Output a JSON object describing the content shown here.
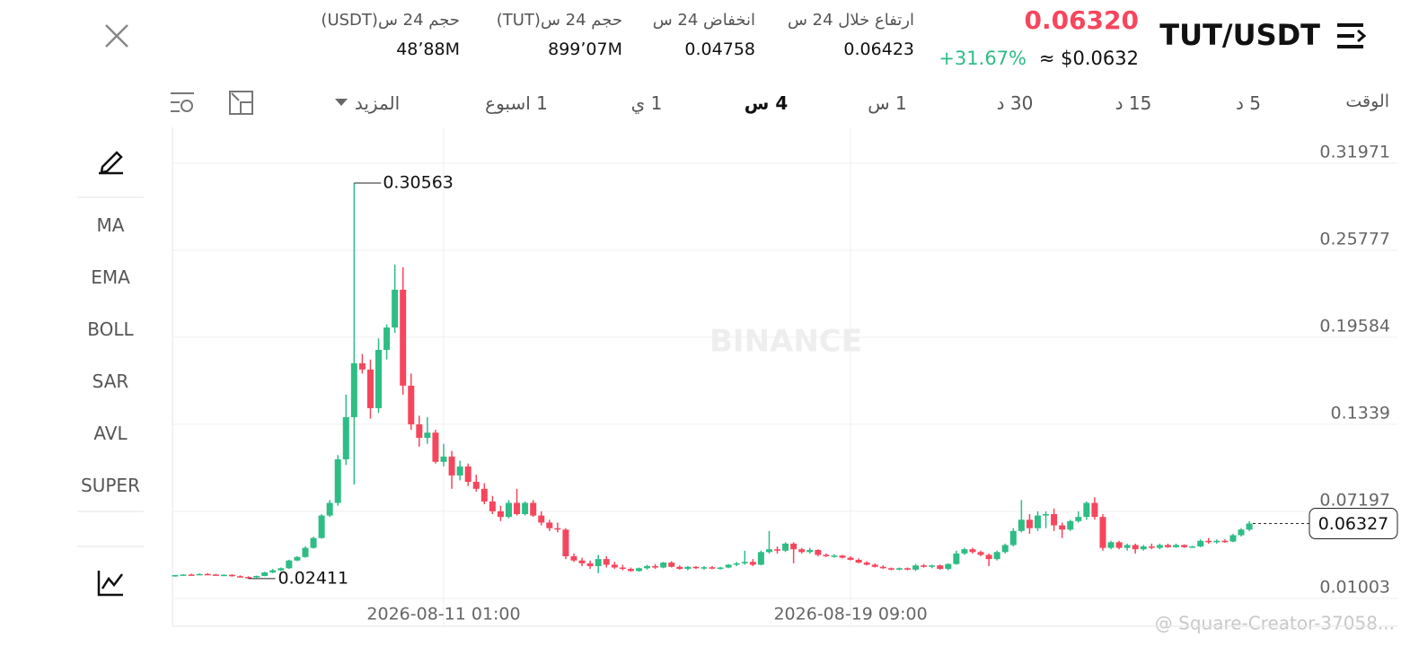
{
  "header": {
    "pair": "TUT/USDT",
    "price": "0.06320",
    "usd_price": "≈ $0.0632",
    "change": "+31.67%"
  },
  "stats": [
    {
      "label": "ارتفاع خلال 24 س",
      "value": "0.06423"
    },
    {
      "label": "انخفاض 24 س",
      "value": "0.04758"
    },
    {
      "label": "حجم 24 س(TUT)",
      "value": "899٬07M"
    },
    {
      "label": "حجم 24 س(USDT)",
      "value": "48٬88M"
    }
  ],
  "timeframes": {
    "label": "الوقت",
    "items": [
      "5 د",
      "15 د",
      "30 د",
      "1 س",
      "4 س",
      "1 ي",
      "1 اسبوع",
      "المزيد"
    ],
    "active": "4 س"
  },
  "indicators": [
    "MA",
    "EMA",
    "BOLL",
    "SAR",
    "AVL",
    "SUPER"
  ],
  "watermark": "BINANCE",
  "credit": "@ Square-Creator-37058...",
  "chart_data": {
    "type": "candlestick",
    "ohlc": [
      [
        0.0262,
        0.0268,
        0.0255,
        0.0266
      ],
      [
        0.0266,
        0.0272,
        0.0262,
        0.027
      ],
      [
        0.027,
        0.0276,
        0.0264,
        0.0268
      ],
      [
        0.0268,
        0.0278,
        0.0265,
        0.0274
      ],
      [
        0.0274,
        0.028,
        0.0266,
        0.027
      ],
      [
        0.027,
        0.0275,
        0.0262,
        0.0265
      ],
      [
        0.0265,
        0.0272,
        0.026,
        0.0268
      ],
      [
        0.0268,
        0.0272,
        0.0255,
        0.0258
      ],
      [
        0.0258,
        0.0264,
        0.0248,
        0.0252
      ],
      [
        0.0252,
        0.0258,
        0.02411,
        0.025
      ],
      [
        0.025,
        0.0262,
        0.0246,
        0.026
      ],
      [
        0.026,
        0.029,
        0.0258,
        0.0285
      ],
      [
        0.0285,
        0.031,
        0.028,
        0.03
      ],
      [
        0.03,
        0.032,
        0.0295,
        0.0315
      ],
      [
        0.0315,
        0.0375,
        0.031,
        0.037
      ],
      [
        0.037,
        0.04,
        0.0365,
        0.0395
      ],
      [
        0.0395,
        0.047,
        0.039,
        0.046
      ],
      [
        0.046,
        0.054,
        0.0455,
        0.053
      ],
      [
        0.053,
        0.07,
        0.0525,
        0.069
      ],
      [
        0.069,
        0.08,
        0.068,
        0.078
      ],
      [
        0.078,
        0.112,
        0.076,
        0.109
      ],
      [
        0.109,
        0.155,
        0.105,
        0.139
      ],
      [
        0.139,
        0.30563,
        0.0911,
        0.1774
      ],
      [
        0.1774,
        0.184,
        0.17,
        0.1729
      ],
      [
        0.1729,
        0.18,
        0.138,
        0.1454
      ],
      [
        0.1454,
        0.195,
        0.142,
        0.1869
      ],
      [
        0.1869,
        0.205,
        0.18,
        0.2028
      ],
      [
        0.2028,
        0.2476,
        0.199,
        0.2297
      ],
      [
        0.2297,
        0.2456,
        0.155,
        0.1614
      ],
      [
        0.1614,
        0.17,
        0.13,
        0.1339
      ],
      [
        0.1339,
        0.14,
        0.118,
        0.1243
      ],
      [
        0.1243,
        0.139,
        0.12,
        0.128
      ],
      [
        0.128,
        0.13,
        0.106,
        0.1072
      ],
      [
        0.1072,
        0.12,
        0.104,
        0.111
      ],
      [
        0.111,
        0.115,
        0.088,
        0.0975
      ],
      [
        0.0975,
        0.108,
        0.094,
        0.1039
      ],
      [
        0.1039,
        0.106,
        0.09,
        0.093
      ],
      [
        0.093,
        0.098,
        0.086,
        0.088
      ],
      [
        0.088,
        0.092,
        0.077,
        0.079
      ],
      [
        0.079,
        0.083,
        0.07,
        0.072
      ],
      [
        0.072,
        0.076,
        0.065,
        0.068
      ],
      [
        0.068,
        0.08,
        0.067,
        0.078
      ],
      [
        0.078,
        0.088,
        0.069,
        0.07
      ],
      [
        0.07,
        0.079,
        0.069,
        0.078
      ],
      [
        0.078,
        0.08,
        0.068,
        0.069
      ],
      [
        0.069,
        0.072,
        0.062,
        0.064
      ],
      [
        0.064,
        0.066,
        0.058,
        0.06
      ],
      [
        0.06,
        0.064,
        0.057,
        0.059
      ],
      [
        0.059,
        0.06,
        0.038,
        0.04
      ],
      [
        0.04,
        0.042,
        0.036,
        0.037
      ],
      [
        0.037,
        0.039,
        0.033,
        0.035
      ],
      [
        0.035,
        0.037,
        0.031,
        0.033
      ],
      [
        0.033,
        0.041,
        0.028,
        0.038
      ],
      [
        0.038,
        0.04,
        0.032,
        0.034
      ],
      [
        0.034,
        0.036,
        0.031,
        0.032
      ],
      [
        0.032,
        0.034,
        0.03,
        0.031
      ],
      [
        0.031,
        0.032,
        0.029,
        0.0295
      ],
      [
        0.0295,
        0.032,
        0.029,
        0.0315
      ],
      [
        0.0315,
        0.034,
        0.0305,
        0.033
      ],
      [
        0.033,
        0.0345,
        0.031,
        0.032
      ],
      [
        0.032,
        0.036,
        0.0315,
        0.0355
      ],
      [
        0.0355,
        0.0365,
        0.032,
        0.0325
      ],
      [
        0.0325,
        0.0335,
        0.0305,
        0.031
      ],
      [
        0.031,
        0.033,
        0.03,
        0.0325
      ],
      [
        0.0325,
        0.033,
        0.031,
        0.0315
      ],
      [
        0.0315,
        0.033,
        0.0305,
        0.0322
      ],
      [
        0.0322,
        0.033,
        0.0308,
        0.0312
      ],
      [
        0.0312,
        0.0325,
        0.0305,
        0.032
      ],
      [
        0.032,
        0.0345,
        0.0315,
        0.034
      ],
      [
        0.034,
        0.036,
        0.033,
        0.035
      ],
      [
        0.035,
        0.044,
        0.034,
        0.036
      ],
      [
        0.036,
        0.038,
        0.033,
        0.034
      ],
      [
        0.034,
        0.044,
        0.0335,
        0.043
      ],
      [
        0.043,
        0.058,
        0.042,
        0.045
      ],
      [
        0.045,
        0.047,
        0.042,
        0.044
      ],
      [
        0.044,
        0.05,
        0.043,
        0.049
      ],
      [
        0.049,
        0.05,
        0.035,
        0.045
      ],
      [
        0.045,
        0.046,
        0.042,
        0.043
      ],
      [
        0.043,
        0.046,
        0.042,
        0.0445
      ],
      [
        0.0445,
        0.045,
        0.04,
        0.041
      ],
      [
        0.041,
        0.042,
        0.0395,
        0.04
      ],
      [
        0.04,
        0.0415,
        0.039,
        0.0405
      ],
      [
        0.0405,
        0.041,
        0.0385,
        0.039
      ],
      [
        0.039,
        0.04,
        0.037,
        0.0375
      ],
      [
        0.0375,
        0.0385,
        0.035,
        0.0355
      ],
      [
        0.0355,
        0.0365,
        0.0335,
        0.034
      ],
      [
        0.034,
        0.035,
        0.032,
        0.0325
      ],
      [
        0.0325,
        0.0335,
        0.031,
        0.0315
      ],
      [
        0.0315,
        0.032,
        0.03,
        0.0305
      ],
      [
        0.0305,
        0.032,
        0.03,
        0.0315
      ],
      [
        0.0315,
        0.032,
        0.03,
        0.0305
      ],
      [
        0.0305,
        0.0345,
        0.0295,
        0.0335
      ],
      [
        0.0335,
        0.0345,
        0.032,
        0.0325
      ],
      [
        0.0325,
        0.034,
        0.0315,
        0.0335
      ],
      [
        0.0335,
        0.034,
        0.0305,
        0.031
      ],
      [
        0.031,
        0.035,
        0.03,
        0.0345
      ],
      [
        0.0345,
        0.044,
        0.034,
        0.042
      ],
      [
        0.042,
        0.046,
        0.041,
        0.045
      ],
      [
        0.045,
        0.046,
        0.042,
        0.043
      ],
      [
        0.043,
        0.044,
        0.04,
        0.041
      ],
      [
        0.041,
        0.042,
        0.033,
        0.038
      ],
      [
        0.038,
        0.044,
        0.037,
        0.043
      ],
      [
        0.043,
        0.049,
        0.042,
        0.048
      ],
      [
        0.048,
        0.06,
        0.047,
        0.058
      ],
      [
        0.058,
        0.08,
        0.057,
        0.066
      ],
      [
        0.066,
        0.07,
        0.056,
        0.06
      ],
      [
        0.06,
        0.072,
        0.058,
        0.069
      ],
      [
        0.069,
        0.072,
        0.06,
        0.07
      ],
      [
        0.07,
        0.074,
        0.058,
        0.062
      ],
      [
        0.062,
        0.064,
        0.053,
        0.059
      ],
      [
        0.059,
        0.066,
        0.058,
        0.065
      ],
      [
        0.065,
        0.072,
        0.064,
        0.068
      ],
      [
        0.068,
        0.079,
        0.066,
        0.078
      ],
      [
        0.078,
        0.082,
        0.066,
        0.068
      ],
      [
        0.068,
        0.07,
        0.044,
        0.046
      ],
      [
        0.046,
        0.051,
        0.045,
        0.05
      ],
      [
        0.05,
        0.051,
        0.045,
        0.046
      ],
      [
        0.046,
        0.049,
        0.044,
        0.048
      ],
      [
        0.048,
        0.049,
        0.042,
        0.045
      ],
      [
        0.045,
        0.048,
        0.044,
        0.047
      ],
      [
        0.047,
        0.049,
        0.045,
        0.046
      ],
      [
        0.046,
        0.049,
        0.045,
        0.048
      ],
      [
        0.048,
        0.049,
        0.046,
        0.0465
      ],
      [
        0.0465,
        0.049,
        0.046,
        0.048
      ],
      [
        0.048,
        0.0485,
        0.046,
        0.0465
      ],
      [
        0.0465,
        0.0475,
        0.046,
        0.047
      ],
      [
        0.047,
        0.052,
        0.0465,
        0.051
      ],
      [
        0.051,
        0.053,
        0.049,
        0.05
      ],
      [
        0.05,
        0.052,
        0.049,
        0.051
      ],
      [
        0.051,
        0.052,
        0.0495,
        0.0505
      ],
      [
        0.0505,
        0.056,
        0.05,
        0.055
      ],
      [
        0.055,
        0.06,
        0.054,
        0.059
      ],
      [
        0.059,
        0.065,
        0.058,
        0.06327
      ]
    ],
    "ylim": [
      -0.0098,
      0.3452
    ],
    "yticks": [
      0.01003,
      0.07197,
      0.1339,
      0.19584,
      0.25777,
      0.31971
    ],
    "xlim": [
      -0.33,
      150.2
    ],
    "xticks": [
      {
        "value": 33,
        "label": "2026-08-11 01:00"
      },
      {
        "value": 83,
        "label": "2026-08-19 09:00"
      }
    ],
    "up_color": "#2ebd85",
    "down_color": "#f6465d",
    "grid": true
  }
}
